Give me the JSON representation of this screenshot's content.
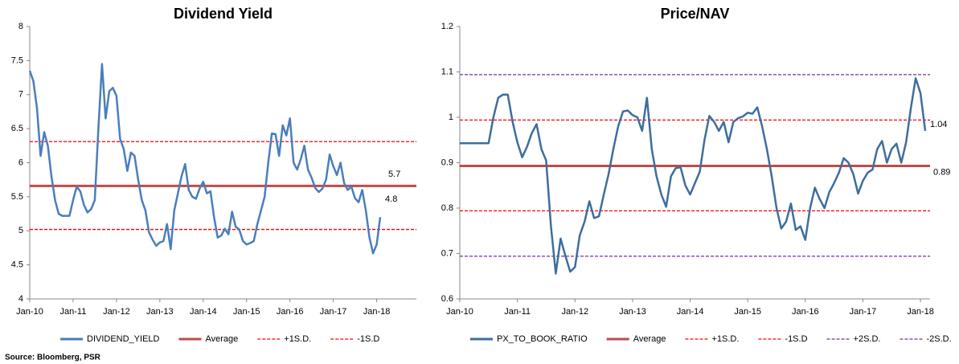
{
  "source": "Source: Bloomberg, PSR",
  "chart_data": [
    {
      "type": "line",
      "title": "Dividend Yield",
      "categories": [
        "Jan-10",
        null,
        null,
        null,
        null,
        null,
        null,
        null,
        null,
        null,
        null,
        null,
        "Jan-11",
        null,
        null,
        null,
        null,
        null,
        null,
        null,
        null,
        null,
        null,
        null,
        "Jan-12",
        null,
        null,
        null,
        null,
        null,
        null,
        null,
        null,
        null,
        null,
        null,
        "Jan-13",
        null,
        null,
        null,
        null,
        null,
        null,
        null,
        null,
        null,
        null,
        null,
        "Jan-14",
        null,
        null,
        null,
        null,
        null,
        null,
        null,
        null,
        null,
        null,
        null,
        "Jan-15",
        null,
        null,
        null,
        null,
        null,
        null,
        null,
        null,
        null,
        null,
        null,
        "Jan-16",
        null,
        null,
        null,
        null,
        null,
        null,
        null,
        null,
        null,
        null,
        null,
        "Jan-17",
        null,
        null,
        null,
        null,
        null,
        null,
        null,
        null,
        null,
        null,
        null,
        "Jan-18",
        null,
        null,
        null,
        null,
        null,
        null,
        null,
        null,
        null,
        null,
        null
      ],
      "series": [
        {
          "name": "DIVIDEND_YIELD",
          "color": "#4a7ebb",
          "values": [
            7.35,
            7.2,
            6.8,
            6.1,
            6.45,
            6.25,
            5.8,
            5.45,
            5.25,
            5.22,
            5.22,
            5.22,
            5.45,
            5.65,
            5.58,
            5.38,
            5.27,
            5.32,
            5.45,
            6.5,
            7.45,
            6.65,
            7.05,
            7.1,
            6.98,
            6.35,
            6.2,
            5.88,
            6.15,
            6.1,
            5.75,
            5.45,
            5.3,
            4.98,
            4.87,
            4.78,
            4.83,
            4.85,
            5.1,
            4.73,
            5.3,
            5.55,
            5.8,
            5.98,
            5.6,
            5.5,
            5.47,
            5.62,
            5.72,
            5.55,
            5.58,
            5.2,
            4.9,
            4.93,
            5.03,
            4.95,
            5.28,
            5.06,
            5.02,
            4.85,
            4.8,
            4.82,
            4.85,
            5.1,
            5.3,
            5.5,
            6.0,
            6.43,
            6.42,
            6.1,
            6.55,
            6.4,
            6.65,
            6.0,
            5.9,
            6.05,
            6.25,
            5.9,
            5.78,
            5.63,
            5.57,
            5.62,
            5.75,
            6.12,
            5.95,
            5.82,
            6.0,
            5.7,
            5.6,
            5.65,
            5.48,
            5.42,
            5.6,
            5.3,
            4.9,
            4.67,
            4.8,
            5.2,
            null,
            null,
            null,
            null,
            null,
            null,
            null,
            null,
            null,
            null
          ]
        }
      ],
      "lines": [
        {
          "name": "Average",
          "color": "#be4b48",
          "value": 5.66,
          "style": "solid",
          "value_label": "5.7"
        },
        {
          "name": "+1S.D.",
          "color": "#ff0000",
          "value": 6.31,
          "style": "dashed"
        },
        {
          "name": "-1S.D",
          "color": "#ff0000",
          "value": 5.02,
          "style": "dashed"
        }
      ],
      "annotations": [
        "4.8"
      ],
      "ylim": [
        4,
        8
      ],
      "yticks": [
        4,
        4.5,
        5,
        5.5,
        6,
        6.5,
        7,
        7.5,
        8
      ],
      "legend": "bottom"
    },
    {
      "type": "line",
      "title": "Price/NAV",
      "categories": [
        "Jan-10",
        null,
        null,
        null,
        null,
        null,
        null,
        null,
        null,
        null,
        null,
        null,
        "Jan-11",
        null,
        null,
        null,
        null,
        null,
        null,
        null,
        null,
        null,
        null,
        null,
        "Jan-12",
        null,
        null,
        null,
        null,
        null,
        null,
        null,
        null,
        null,
        null,
        null,
        "Jan-13",
        null,
        null,
        null,
        null,
        null,
        null,
        null,
        null,
        null,
        null,
        null,
        "Jan-14",
        null,
        null,
        null,
        null,
        null,
        null,
        null,
        null,
        null,
        null,
        null,
        "Jan-15",
        null,
        null,
        null,
        null,
        null,
        null,
        null,
        null,
        null,
        null,
        null,
        "Jan-16",
        null,
        null,
        null,
        null,
        null,
        null,
        null,
        null,
        null,
        null,
        null,
        "Jan-17",
        null,
        null,
        null,
        null,
        null,
        null,
        null,
        null,
        null,
        null,
        null,
        "Jan-18",
        null,
        null
      ],
      "series": [
        {
          "name": "PX_TO_BOOK_RATIO",
          "color": "#3d6e9e",
          "values": [
            0.943,
            0.943,
            0.943,
            0.943,
            0.943,
            0.943,
            0.943,
            1.0,
            1.043,
            1.05,
            1.05,
            0.99,
            0.945,
            0.912,
            0.935,
            0.965,
            0.985,
            0.93,
            0.905,
            0.76,
            0.656,
            0.733,
            0.695,
            0.66,
            0.67,
            0.74,
            0.77,
            0.815,
            0.778,
            0.782,
            0.83,
            0.875,
            0.93,
            0.98,
            1.013,
            1.015,
            1.005,
            1.0,
            0.97,
            1.043,
            0.93,
            0.87,
            0.83,
            0.803,
            0.87,
            0.888,
            0.89,
            0.85,
            0.83,
            0.855,
            0.88,
            0.95,
            1.003,
            0.99,
            0.97,
            0.99,
            0.945,
            0.99,
            0.998,
            1.002,
            1.01,
            1.008,
            1.022,
            0.98,
            0.93,
            0.87,
            0.8,
            0.755,
            0.77,
            0.81,
            0.752,
            0.76,
            0.73,
            0.8,
            0.845,
            0.82,
            0.8,
            0.835,
            0.855,
            0.878,
            0.91,
            0.9,
            0.875,
            0.832,
            0.86,
            0.878,
            0.885,
            0.93,
            0.948,
            0.9,
            0.93,
            0.942,
            0.9,
            0.945,
            1.02,
            1.086,
            1.053,
            0.97,
            null
          ]
        }
      ],
      "lines": [
        {
          "name": "Average",
          "color": "#be4b48",
          "value": 0.893,
          "style": "solid",
          "value_label": "0.89"
        },
        {
          "name": "+1S.D.",
          "color": "#ff0000",
          "value": 0.994,
          "style": "dashed"
        },
        {
          "name": "-1S.D",
          "color": "#ff0000",
          "value": 0.794,
          "style": "dashed"
        },
        {
          "name": "+2S.D.",
          "color": "#7030a0",
          "value": 1.094,
          "style": "dashed"
        },
        {
          "name": "-2S.D.",
          "color": "#7030a0",
          "value": 0.694,
          "style": "dashed"
        }
      ],
      "annotations": [
        "1.04"
      ],
      "ylim": [
        0.6,
        1.2
      ],
      "yticks": [
        0.6,
        0.7,
        0.8,
        0.9,
        1,
        1.1,
        1.2
      ],
      "legend": "bottom"
    }
  ]
}
